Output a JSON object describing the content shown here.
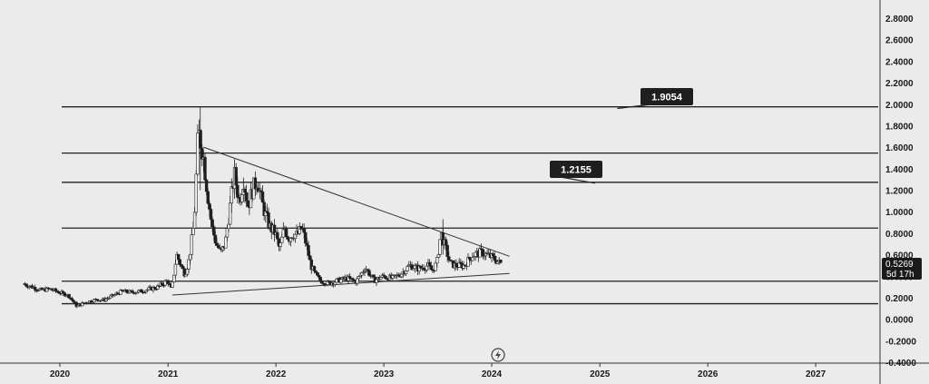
{
  "chart_data": {
    "type": "candlestick",
    "y_axis": {
      "ticks": [
        "2.8000",
        "2.6000",
        "2.4000",
        "2.2000",
        "2.0000",
        "1.8000",
        "1.6000",
        "1.4000",
        "1.2000",
        "1.0000",
        "0.8000",
        "0.6000",
        "0.4000",
        "0.2000",
        "0.0000",
        "-0.2000",
        "-0.4000"
      ],
      "range": [
        -0.4,
        2.95
      ]
    },
    "x_axis": {
      "labels": [
        "2020",
        "2021",
        "2022",
        "2023",
        "2024",
        "2025",
        "2026",
        "2027"
      ],
      "range": [
        "2019-09-01",
        "2027-12-31"
      ]
    },
    "horizontal_levels": [
      1.9754,
      1.5452,
      1.2733,
      0.8473,
      0.3538,
      0.1441
    ],
    "trendlines": [
      {
        "name": "resistance",
        "points": [
          [
            "2021-05-01",
            1.6
          ],
          [
            "2024-03-01",
            0.585
          ]
        ]
      },
      {
        "name": "support",
        "points": [
          [
            "2021-01-15",
            0.225
          ],
          [
            "2024-03-01",
            0.425
          ]
        ]
      }
    ],
    "targets": [
      {
        "label": "1.9054",
        "arrow_to": [
          "2025-03-01",
          1.96
        ]
      },
      {
        "label": "1.2155",
        "arrow_to": [
          "2024-12-15",
          1.265
        ]
      }
    ],
    "current_price": {
      "value": "0.5269",
      "countdown": "5d 17h"
    },
    "price_path": [
      [
        "2019-09-01",
        0.33
      ],
      [
        "2019-10-01",
        0.3
      ],
      [
        "2019-11-01",
        0.27
      ],
      [
        "2019-12-01",
        0.28
      ],
      [
        "2020-01-01",
        0.25
      ],
      [
        "2020-02-01",
        0.22
      ],
      [
        "2020-03-01",
        0.12
      ],
      [
        "2020-04-01",
        0.16
      ],
      [
        "2020-05-01",
        0.18
      ],
      [
        "2020-06-01",
        0.18
      ],
      [
        "2020-07-01",
        0.22
      ],
      [
        "2020-08-01",
        0.26
      ],
      [
        "2020-09-01",
        0.25
      ],
      [
        "2020-10-01",
        0.26
      ],
      [
        "2020-11-01",
        0.28
      ],
      [
        "2020-12-01",
        0.3
      ],
      [
        "2021-01-01",
        0.36
      ],
      [
        "2021-01-15",
        0.27
      ],
      [
        "2021-02-01",
        0.6
      ],
      [
        "2021-02-15",
        0.5
      ],
      [
        "2021-03-01",
        0.42
      ],
      [
        "2021-03-15",
        0.55
      ],
      [
        "2021-04-01",
        0.9
      ],
      [
        "2021-04-15",
        1.75
      ],
      [
        "2021-05-01",
        1.55
      ],
      [
        "2021-05-15",
        1.2
      ],
      [
        "2021-06-01",
        0.85
      ],
      [
        "2021-06-15",
        0.7
      ],
      [
        "2021-07-01",
        0.62
      ],
      [
        "2021-07-15",
        0.7
      ],
      [
        "2021-08-01",
        1.05
      ],
      [
        "2021-08-15",
        1.35
      ],
      [
        "2021-09-01",
        1.1
      ],
      [
        "2021-09-15",
        1.3
      ],
      [
        "2021-10-01",
        1.05
      ],
      [
        "2021-10-15",
        1.2
      ],
      [
        "2021-11-01",
        1.3
      ],
      [
        "2021-11-15",
        1.1
      ],
      [
        "2021-12-01",
        0.95
      ],
      [
        "2021-12-15",
        0.85
      ],
      [
        "2022-01-01",
        0.8
      ],
      [
        "2022-01-15",
        0.65
      ],
      [
        "2022-02-01",
        0.85
      ],
      [
        "2022-02-15",
        0.75
      ],
      [
        "2022-03-01",
        0.8
      ],
      [
        "2022-03-15",
        0.78
      ],
      [
        "2022-04-01",
        0.85
      ],
      [
        "2022-04-15",
        0.7
      ],
      [
        "2022-05-01",
        0.5
      ],
      [
        "2022-05-15",
        0.42
      ],
      [
        "2022-06-01",
        0.36
      ],
      [
        "2022-07-01",
        0.33
      ],
      [
        "2022-08-01",
        0.36
      ],
      [
        "2022-09-01",
        0.38
      ],
      [
        "2022-10-01",
        0.35
      ],
      [
        "2022-11-01",
        0.48
      ],
      [
        "2022-12-01",
        0.36
      ],
      [
        "2023-01-01",
        0.4
      ],
      [
        "2023-02-01",
        0.38
      ],
      [
        "2023-03-01",
        0.42
      ],
      [
        "2023-04-01",
        0.5
      ],
      [
        "2023-05-01",
        0.47
      ],
      [
        "2023-06-01",
        0.5
      ],
      [
        "2023-06-15",
        0.45
      ],
      [
        "2023-07-01",
        0.52
      ],
      [
        "2023-07-15",
        0.8
      ],
      [
        "2023-08-01",
        0.65
      ],
      [
        "2023-08-15",
        0.52
      ],
      [
        "2023-09-01",
        0.5
      ],
      [
        "2023-10-01",
        0.5
      ],
      [
        "2023-11-01",
        0.6
      ],
      [
        "2023-12-01",
        0.62
      ],
      [
        "2024-01-01",
        0.58
      ],
      [
        "2024-02-01",
        0.52
      ]
    ]
  }
}
